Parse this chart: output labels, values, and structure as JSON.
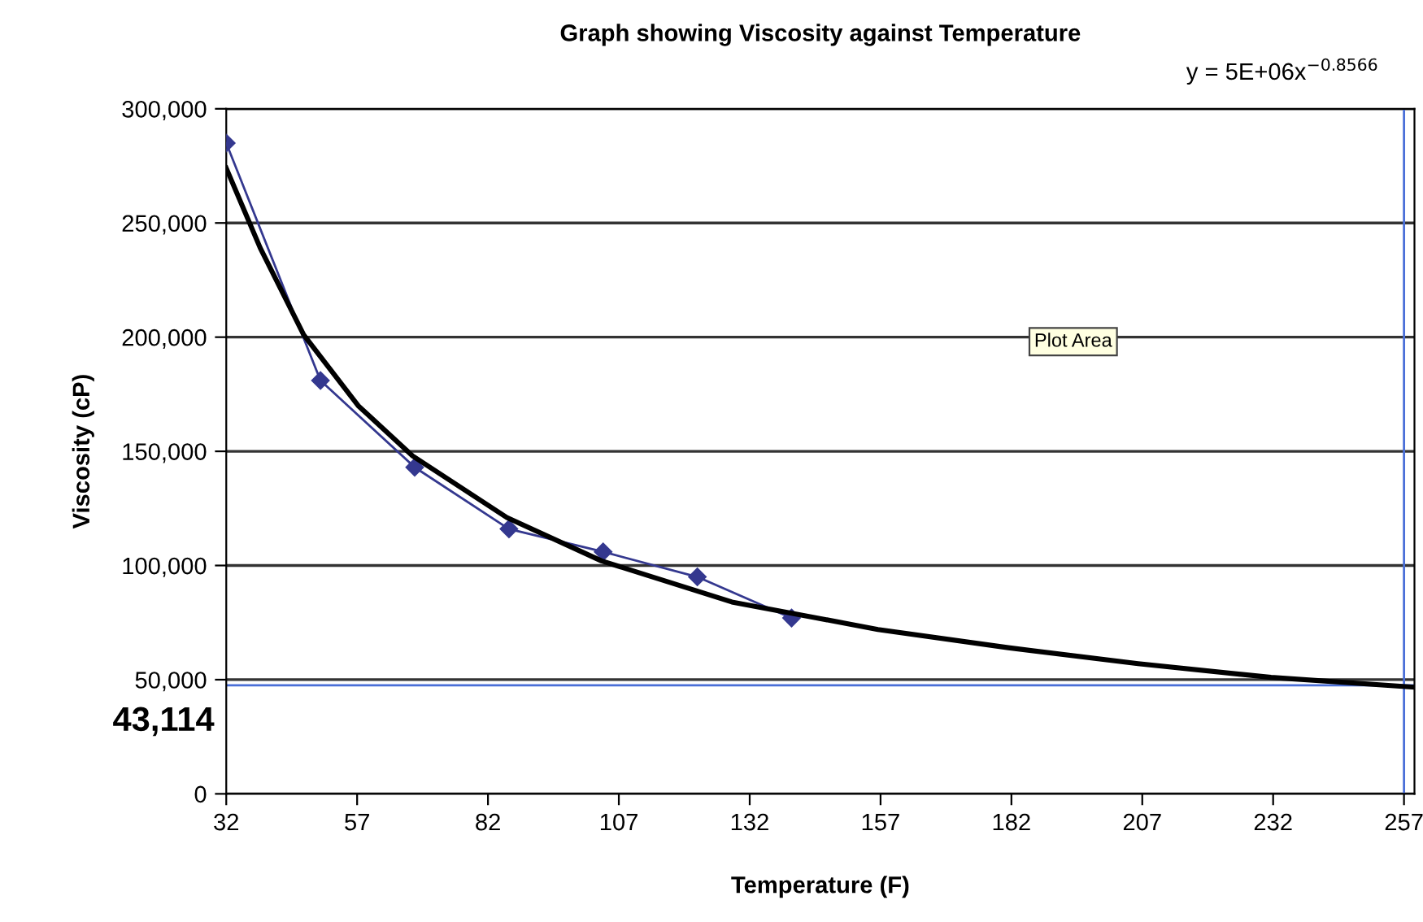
{
  "chart_data": {
    "type": "line",
    "title": "Graph showing Viscosity against Temperature",
    "xlabel": "Temperature (F)",
    "ylabel": "Viscosity (cP)",
    "annotations": [
      "y = 5E+06x$^{−0.8566}$",
      "43,114",
      "Plot Area"
    ],
    "xlim": [
      32,
      259
    ],
    "xticks": [
      32,
      57,
      82,
      107,
      132,
      157,
      182,
      207,
      232,
      257
    ],
    "ylim": [
      0,
      300000
    ],
    "yticks": [
      0,
      {
        "value": 50000,
        "label": "50,000"
      },
      {
        "value": 100000,
        "label": "100,000"
      },
      {
        "value": 150000,
        "label": "150,000"
      },
      {
        "value": 200000,
        "label": "200,000"
      },
      {
        "value": 250000,
        "label": "250,000"
      },
      {
        "value": 300000,
        "label": "300,000"
      }
    ],
    "grid": "y",
    "legend": false,
    "ref_lines": [
      {
        "axis": "y",
        "value": 47500,
        "color": "#4a6fd8"
      },
      {
        "axis": "x",
        "value": 257,
        "color": "#4a6fd8"
      }
    ],
    "series": [
      {
        "color": "#34388f",
        "marker": "diamond",
        "x": [
          32,
          50,
          68,
          86,
          104,
          122,
          140
        ],
        "values": [
          285000,
          181000,
          143000,
          116000,
          106000,
          95000,
          77000
        ]
      },
      {
        "color": "#000000",
        "marker": "none",
        "x": [
          32,
          38.5,
          46.8,
          57.2,
          67.6,
          85.6,
          103.7,
          128.6,
          156.5,
          181.4,
          206.2,
          231.6,
          259
        ],
        "values": [
          274000,
          239000,
          201000,
          170000,
          148000,
          121000,
          102000,
          84000,
          72000,
          64000,
          57000,
          51000,
          46700
        ]
      }
    ]
  }
}
